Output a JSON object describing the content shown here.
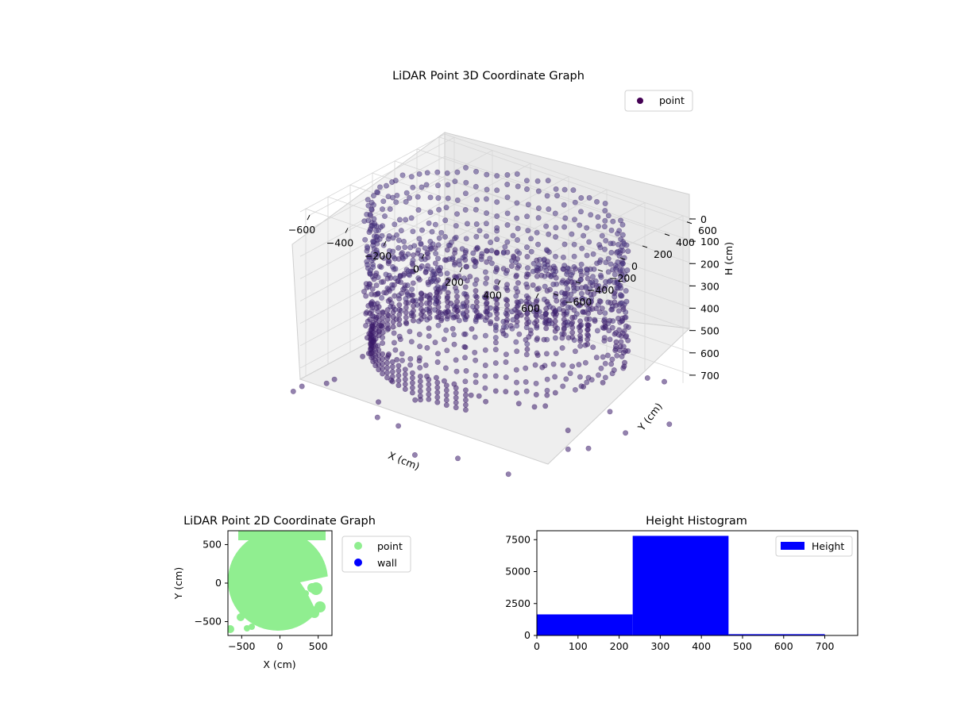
{
  "chart_data": [
    {
      "type": "scatter3d",
      "title": "LiDAR Point 3D Coordinate Graph",
      "xlabel": "X (cm)",
      "ylabel": "Y (cm)",
      "zlabel": "H (cm)",
      "xticks": [
        "−600",
        "−400",
        "−200",
        "0",
        "200",
        "400",
        "600"
      ],
      "yticks": [
        "−600",
        "−400",
        "−200",
        "0",
        "200",
        "400",
        "600"
      ],
      "zticks": [
        "0",
        "100",
        "200",
        "300",
        "400",
        "500",
        "600",
        "700"
      ],
      "xlim": [
        -650,
        650
      ],
      "ylim": [
        -650,
        650
      ],
      "zlim": [
        0,
        750
      ],
      "z_inverted": true,
      "grid": true,
      "legend": {
        "placement": "top-right",
        "entries": [
          "point"
        ]
      },
      "series": [
        {
          "name": "point",
          "color": "#440154",
          "structure": "ring",
          "inner_radius": 250,
          "outer_radius": 600,
          "height_range": [
            0,
            700
          ]
        }
      ]
    },
    {
      "type": "scatter",
      "title": "LiDAR Point 2D Coordinate Graph",
      "xlabel": "X (cm)",
      "ylabel": "Y (cm)",
      "xticks": [
        "−500",
        "0",
        "500"
      ],
      "yticks": [
        "500",
        "0",
        "−500"
      ],
      "xlim": [
        -680,
        680
      ],
      "ylim": [
        -680,
        680
      ],
      "legend": {
        "placement": "outside-right",
        "entries": [
          "point",
          "wall"
        ]
      },
      "series": [
        {
          "name": "point",
          "color": "#90ee90"
        },
        {
          "name": "wall",
          "color": "#0000ff"
        }
      ]
    },
    {
      "type": "bar",
      "title": "Height Histogram",
      "xticks": [
        "0",
        "100",
        "200",
        "300",
        "400",
        "500",
        "600",
        "700"
      ],
      "yticks": [
        "0",
        "2500",
        "5000",
        "7500"
      ],
      "xlim": [
        0,
        780
      ],
      "ylim": [
        0,
        8200
      ],
      "legend": {
        "placement": "top-right",
        "entries": [
          "Height"
        ]
      },
      "series": [
        {
          "name": "Height",
          "color": "#0000ff",
          "bins": [
            {
              "x0": 0,
              "x1": 233,
              "count": 1650
            },
            {
              "x0": 233,
              "x1": 466,
              "count": 7800
            },
            {
              "x0": 466,
              "x1": 700,
              "count": 100
            }
          ]
        }
      ]
    }
  ]
}
